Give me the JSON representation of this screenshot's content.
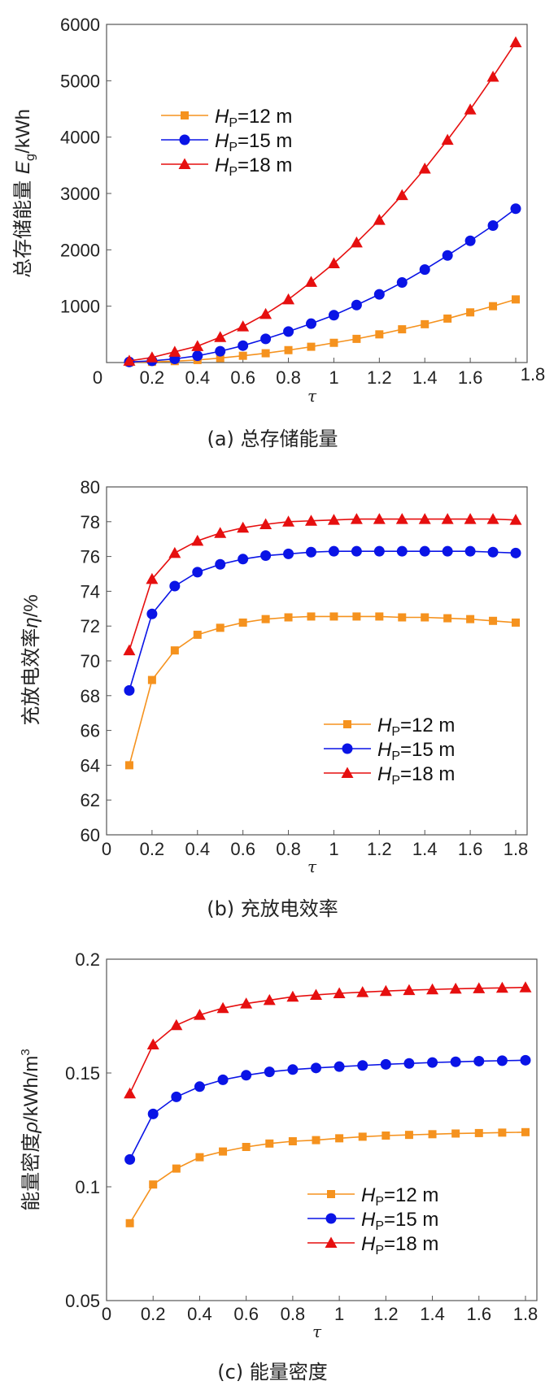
{
  "colors": {
    "s12": "#f5921e",
    "s15": "#0a14e6",
    "s18": "#e60f0f",
    "axis": "#555555"
  },
  "chart_data": [
    {
      "type": "line",
      "caption": "(a) 总存储能量",
      "xlabel": "τ",
      "ylabel": "总存储能量 E_g/kWh",
      "ylabel_main": "总存储能量 ",
      "ylabel_var": "E",
      "ylabel_sub": "g",
      "ylabel_unit": "/kWh",
      "xlim": [
        0,
        1.8
      ],
      "ylim": [
        0,
        6000
      ],
      "xticks": [
        0,
        0.2,
        0.4,
        0.6,
        0.8,
        1,
        1.2,
        1.4,
        1.6,
        1.8
      ],
      "xtick_labels": [
        "0",
        "0.2",
        "0.4",
        "0.6",
        "0.8",
        "1",
        "1.2",
        "1.4",
        "1.6",
        "1.8"
      ],
      "yticks": [
        1000,
        2000,
        3000,
        4000,
        5000,
        6000
      ],
      "ytick_labels": [
        "1000",
        "2000",
        "3000",
        "4000",
        "5000",
        "6000"
      ],
      "legend": "upper-left",
      "x": [
        0.1,
        0.2,
        0.3,
        0.4,
        0.5,
        0.6,
        0.7,
        0.8,
        0.9,
        1.0,
        1.1,
        1.2,
        1.3,
        1.4,
        1.5,
        1.6,
        1.7,
        1.8
      ],
      "series": [
        {
          "name": "H_P=12 m",
          "var": "H",
          "sub": "P",
          "rest": "=12 m",
          "marker": "square",
          "color_key": "s12",
          "values": [
            5,
            12,
            25,
            45,
            80,
            120,
            165,
            220,
            280,
            350,
            420,
            500,
            590,
            680,
            780,
            890,
            1000,
            1120
          ]
        },
        {
          "name": "H_P=15 m",
          "var": "H",
          "sub": "P",
          "rest": "=15 m",
          "marker": "circle",
          "color_key": "s15",
          "values": [
            10,
            30,
            65,
            120,
            200,
            300,
            420,
            550,
            690,
            840,
            1020,
            1210,
            1420,
            1650,
            1900,
            2160,
            2430,
            2730
          ]
        },
        {
          "name": "H_P=18 m",
          "var": "H",
          "sub": "P",
          "rest": "=18 m",
          "marker": "triangle",
          "color_key": "s18",
          "values": [
            30,
            90,
            190,
            290,
            450,
            640,
            860,
            1120,
            1430,
            1760,
            2130,
            2530,
            2970,
            3440,
            3950,
            4490,
            5070,
            5680
          ]
        }
      ]
    },
    {
      "type": "line",
      "caption": "(b) 充放电效率",
      "xlabel": "τ",
      "ylabel": "充放电效率η/%",
      "ylabel_main": "充放电效率",
      "ylabel_var": "η",
      "ylabel_sub": "",
      "ylabel_unit": "/%",
      "xlim": [
        0,
        1.8
      ],
      "ylim": [
        60,
        80
      ],
      "xticks": [
        0,
        0.2,
        0.4,
        0.6,
        0.8,
        1,
        1.2,
        1.4,
        1.6,
        1.8
      ],
      "xtick_labels": [
        "0",
        "0.2",
        "0.4",
        "0.6",
        "0.8",
        "1",
        "1.2",
        "1.4",
        "1.6",
        "1.8"
      ],
      "yticks": [
        60,
        62,
        64,
        66,
        68,
        70,
        72,
        74,
        76,
        78,
        80
      ],
      "ytick_labels": [
        "60",
        "62",
        "64",
        "66",
        "68",
        "70",
        "72",
        "74",
        "76",
        "78",
        "80"
      ],
      "legend": "lower-right",
      "x": [
        0.1,
        0.2,
        0.3,
        0.4,
        0.5,
        0.6,
        0.7,
        0.8,
        0.9,
        1.0,
        1.1,
        1.2,
        1.3,
        1.4,
        1.5,
        1.6,
        1.7,
        1.8
      ],
      "series": [
        {
          "name": "H_P=12 m",
          "var": "H",
          "sub": "P",
          "rest": "=12 m",
          "marker": "square",
          "color_key": "s12",
          "values": [
            64.0,
            68.9,
            70.6,
            71.5,
            71.9,
            72.2,
            72.4,
            72.5,
            72.55,
            72.55,
            72.55,
            72.55,
            72.5,
            72.5,
            72.45,
            72.4,
            72.3,
            72.2
          ]
        },
        {
          "name": "H_P=15 m",
          "var": "H",
          "sub": "P",
          "rest": "=15 m",
          "marker": "circle",
          "color_key": "s15",
          "values": [
            68.3,
            72.7,
            74.3,
            75.1,
            75.55,
            75.85,
            76.05,
            76.15,
            76.25,
            76.3,
            76.3,
            76.3,
            76.3,
            76.3,
            76.3,
            76.3,
            76.25,
            76.2
          ]
        },
        {
          "name": "H_P=18 m",
          "var": "H",
          "sub": "P",
          "rest": "=18 m",
          "marker": "triangle",
          "color_key": "s18",
          "values": [
            70.6,
            74.7,
            76.2,
            76.9,
            77.35,
            77.65,
            77.85,
            78.0,
            78.05,
            78.1,
            78.15,
            78.15,
            78.15,
            78.15,
            78.15,
            78.15,
            78.15,
            78.1
          ]
        }
      ]
    },
    {
      "type": "line",
      "caption": "(c) 能量密度",
      "xlabel": "τ",
      "ylabel": "能量密度ρ/kWh/m³",
      "ylabel_main": "能量密度",
      "ylabel_var": "ρ",
      "ylabel_sub": "",
      "ylabel_unit": "/kWh/m",
      "ylabel_sup": "3",
      "xlim": [
        0,
        1.8
      ],
      "ylim": [
        0.05,
        0.2
      ],
      "xticks": [
        0,
        0.2,
        0.4,
        0.6,
        0.8,
        1,
        1.2,
        1.4,
        1.6,
        1.8
      ],
      "xtick_labels": [
        "0",
        "0.2",
        "0.4",
        "0.6",
        "0.8",
        "1",
        "1.2",
        "1.4",
        "1.6",
        "1.8"
      ],
      "yticks": [
        0.05,
        0.1,
        0.15,
        0.2
      ],
      "ytick_labels": [
        "0.05",
        "0.1",
        "0.15",
        "0.2"
      ],
      "legend": "lower-right",
      "x": [
        0.1,
        0.2,
        0.3,
        0.4,
        0.5,
        0.6,
        0.7,
        0.8,
        0.9,
        1.0,
        1.1,
        1.2,
        1.3,
        1.4,
        1.5,
        1.6,
        1.7,
        1.8
      ],
      "series": [
        {
          "name": "H_P=12 m",
          "var": "H",
          "sub": "P",
          "rest": "=12 m",
          "marker": "square",
          "color_key": "s12",
          "values": [
            0.084,
            0.101,
            0.108,
            0.113,
            0.1155,
            0.1175,
            0.119,
            0.12,
            0.1205,
            0.1213,
            0.122,
            0.1225,
            0.1228,
            0.1231,
            0.1234,
            0.1236,
            0.1238,
            0.124
          ]
        },
        {
          "name": "H_P=15 m",
          "var": "H",
          "sub": "P",
          "rest": "=15 m",
          "marker": "circle",
          "color_key": "s15",
          "values": [
            0.112,
            0.132,
            0.1395,
            0.144,
            0.147,
            0.149,
            0.1505,
            0.1515,
            0.1522,
            0.1528,
            0.1533,
            0.1538,
            0.1542,
            0.1546,
            0.1549,
            0.1552,
            0.1554,
            0.1556
          ]
        },
        {
          "name": "H_P=18 m",
          "var": "H",
          "sub": "P",
          "rest": "=18 m",
          "marker": "triangle",
          "color_key": "s18",
          "values": [
            0.141,
            0.1625,
            0.171,
            0.1755,
            0.1785,
            0.1805,
            0.182,
            0.1835,
            0.1843,
            0.185,
            0.1855,
            0.186,
            0.1864,
            0.1867,
            0.187,
            0.1872,
            0.1874,
            0.1876
          ]
        }
      ]
    }
  ]
}
